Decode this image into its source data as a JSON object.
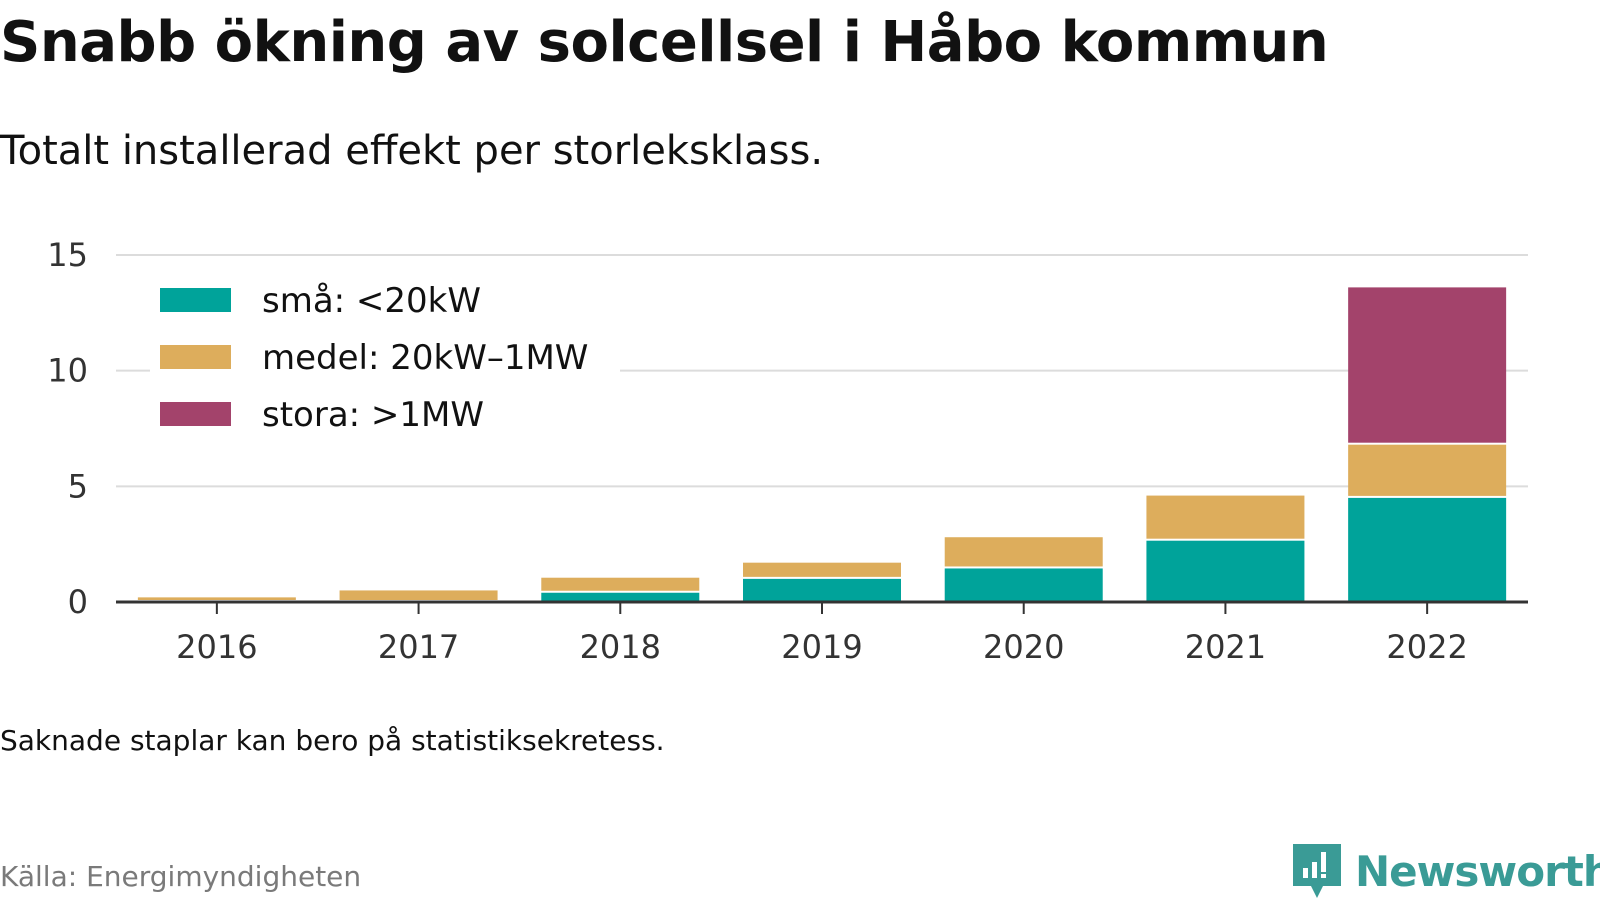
{
  "chart_data": {
    "type": "bar",
    "stacked": true,
    "title": "Snabb ökning av solcellsel i Håbo kommun",
    "subtitle": "Totalt installerad effekt per storleksklass.",
    "categories": [
      "2016",
      "2017",
      "2018",
      "2019",
      "2020",
      "2021",
      "2022"
    ],
    "series": [
      {
        "name": "små: <20kW",
        "color": "#00a39a",
        "values": [
          0.0,
          0.0,
          0.4,
          1.0,
          1.45,
          2.65,
          4.5
        ]
      },
      {
        "name": "medel: 20kW–1MW",
        "color": "#ddad5c",
        "values": [
          0.2,
          0.5,
          0.65,
          0.7,
          1.35,
          1.95,
          2.3
        ]
      },
      {
        "name": "stora: >1MW",
        "color": "#a3436b",
        "values": [
          0.0,
          0.0,
          0.0,
          0.0,
          0.0,
          0.0,
          6.8
        ]
      }
    ],
    "yticks": [
      0,
      5,
      10,
      15
    ],
    "ylim": [
      0,
      15
    ],
    "xlabel": "",
    "ylabel": "",
    "grid": true,
    "legend_position": "top-left",
    "note": "Saknade staplar kan bero på statistiksekretess.",
    "source": "Källa: Energimyndigheten"
  },
  "brand": {
    "name": "Newsworthy",
    "icon": "newsworthy-logo-icon"
  }
}
